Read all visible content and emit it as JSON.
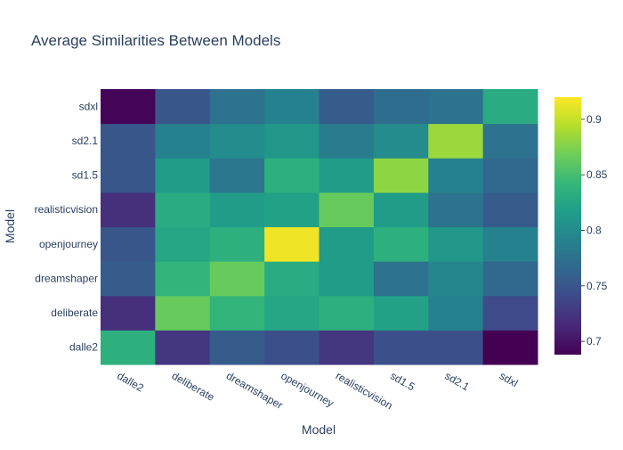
{
  "chart_data": {
    "type": "heatmap",
    "title": "Average Similarities Between Models",
    "xlabel": "Model",
    "ylabel": "Model",
    "x": [
      "dalle2",
      "deliberate",
      "dreamshaper",
      "openjourney",
      "realisticvision",
      "sd1.5",
      "sd2.1",
      "sdxl"
    ],
    "y": [
      "dalle2",
      "deliberate",
      "dreamshaper",
      "openjourney",
      "realisticvision",
      "sd1.5",
      "sd2.1",
      "sdxl"
    ],
    "z": [
      [
        0.835,
        0.725,
        0.755,
        0.745,
        0.725,
        0.745,
        0.745,
        0.688
      ],
      [
        0.72,
        0.865,
        0.84,
        0.825,
        0.835,
        0.82,
        0.79,
        0.74
      ],
      [
        0.755,
        0.84,
        0.865,
        0.83,
        0.815,
        0.775,
        0.795,
        0.765
      ],
      [
        0.75,
        0.825,
        0.835,
        0.915,
        0.815,
        0.835,
        0.81,
        0.79
      ],
      [
        0.72,
        0.83,
        0.815,
        0.82,
        0.865,
        0.815,
        0.775,
        0.755
      ],
      [
        0.75,
        0.815,
        0.78,
        0.835,
        0.815,
        0.88,
        0.79,
        0.765
      ],
      [
        0.75,
        0.79,
        0.8,
        0.81,
        0.785,
        0.8,
        0.885,
        0.775
      ],
      [
        0.69,
        0.75,
        0.775,
        0.79,
        0.755,
        0.77,
        0.775,
        0.83
      ]
    ],
    "zmin": 0.688,
    "zmax": 0.92,
    "colorscale": "Viridis",
    "colorbar_ticks": [
      0.7,
      0.75,
      0.8,
      0.85,
      0.9
    ],
    "colorbar_tick_labels": [
      "0.7",
      "0.75",
      "0.8",
      "0.85",
      "0.9"
    ],
    "grid": false,
    "legend": "colorbar-right"
  },
  "colors": {
    "text": "#2a3f5f",
    "viridis": [
      "#440154",
      "#482878",
      "#3e4989",
      "#31688e",
      "#26828e",
      "#1f9e89",
      "#35b779",
      "#6ece58",
      "#b5de2b",
      "#fde725"
    ]
  }
}
